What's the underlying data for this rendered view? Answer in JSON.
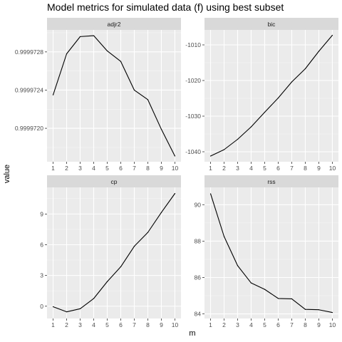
{
  "chart_data": {
    "type": "line",
    "title": "Model metrics for simulated data (f) using best subset",
    "xlabel": "m",
    "ylabel": "value",
    "x": [
      1,
      2,
      3,
      4,
      5,
      6,
      7,
      8,
      9,
      10
    ],
    "x_ticks": [
      "1",
      "2",
      "3",
      "4",
      "5",
      "6",
      "7",
      "8",
      "9",
      "10"
    ],
    "grid": true,
    "legend": "none",
    "panel_background": "#ebebeb",
    "strip_background": "#d9d9d9",
    "line_color": "#000000",
    "facets": [
      {
        "strip": "adjr2",
        "values": [
          0.99997235,
          0.99997278,
          0.99997296,
          0.99997297,
          0.99997281,
          0.9999727,
          0.9999724,
          0.9999723,
          0.99997199,
          0.99997171
        ],
        "ylim": [
          0.99997165,
          0.99997303
        ],
        "y_ticks": [
          0.999972,
          0.9999724,
          0.9999728
        ],
        "y_tick_labels": [
          "0.9999720",
          "0.9999724",
          "0.9999728"
        ]
      },
      {
        "strip": "bic",
        "values": [
          -1041.2,
          -1039.4,
          -1036.5,
          -1033.0,
          -1028.9,
          -1024.9,
          -1020.4,
          -1016.7,
          -1011.8,
          -1007.3
        ],
        "ylim": [
          -1042.8,
          -1005.8
        ],
        "y_ticks": [
          -1040,
          -1030,
          -1020,
          -1010
        ],
        "y_tick_labels": [
          "-1040",
          "-1030",
          "-1020",
          "-1010"
        ]
      },
      {
        "strip": "cp",
        "values": [
          -0.05,
          -0.55,
          -0.25,
          0.75,
          2.4,
          3.85,
          5.85,
          7.2,
          9.15,
          11.0
        ],
        "ylim": [
          -1.2,
          11.6
        ],
        "y_ticks": [
          0,
          3,
          6,
          9
        ],
        "y_tick_labels": [
          "0",
          "3",
          "6",
          "9"
        ]
      },
      {
        "strip": "rss",
        "values": [
          90.6,
          88.25,
          86.65,
          85.7,
          85.35,
          84.85,
          84.83,
          84.25,
          84.23,
          84.08
        ],
        "ylim": [
          83.75,
          90.95
        ],
        "y_ticks": [
          84,
          86,
          88,
          90
        ],
        "y_tick_labels": [
          "84",
          "86",
          "88",
          "90"
        ]
      }
    ]
  }
}
